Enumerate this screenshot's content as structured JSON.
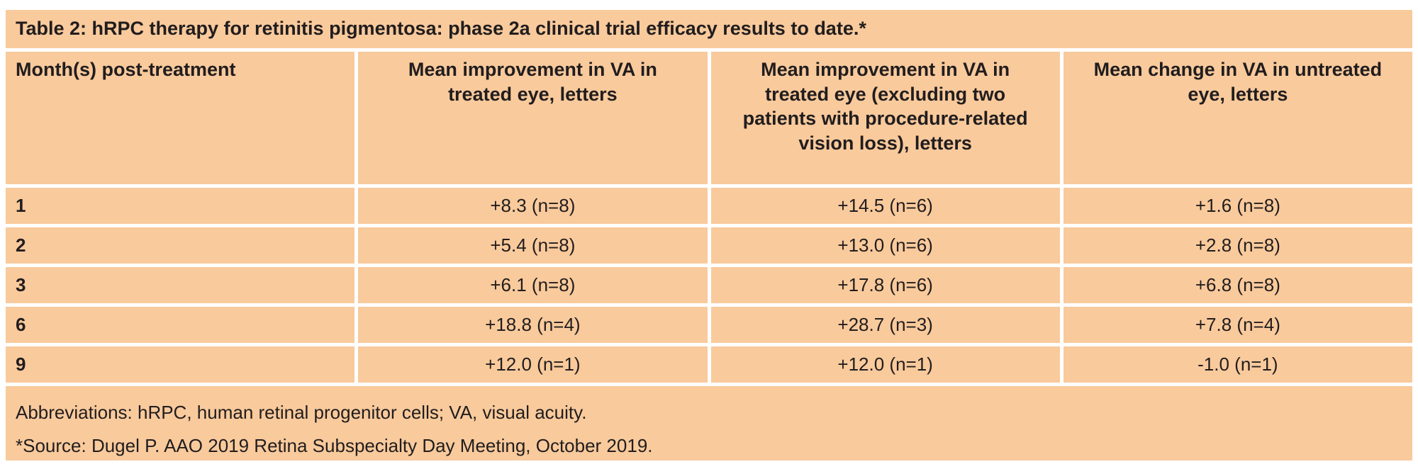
{
  "table": {
    "title": "Table 2: hRPC therapy for retinitis pigmentosa: phase 2a clinical trial efficacy results to date.*",
    "columns": [
      "Month(s) post-treatment",
      "Mean improvement in VA in treated eye, letters",
      "Mean improvement in VA in treated eye (excluding two patients with procedure-related vision loss), letters",
      "Mean change in VA in untreated eye, letters"
    ],
    "rows": [
      {
        "month": "1",
        "treated": "+8.3 (n=8)",
        "treated_excluding": "+14.5 (n=6)",
        "untreated": "+1.6 (n=8)"
      },
      {
        "month": "2",
        "treated": "+5.4 (n=8)",
        "treated_excluding": "+13.0 (n=6)",
        "untreated": "+2.8 (n=8)"
      },
      {
        "month": "3",
        "treated": "+6.1 (n=8)",
        "treated_excluding": "+17.8 (n=6)",
        "untreated": "+6.8 (n=8)"
      },
      {
        "month": "6",
        "treated": "+18.8 (n=4)",
        "treated_excluding": "+28.7 (n=3)",
        "untreated": "+7.8 (n=4)"
      },
      {
        "month": "9",
        "treated": "+12.0 (n=1)",
        "treated_excluding": "+12.0 (n=1)",
        "untreated": "-1.0 (n=1)"
      }
    ],
    "footnotes": {
      "abbreviations": "Abbreviations: hRPC, human retinal progenitor cells; VA, visual acuity.",
      "source": "*Source: Dugel P. AAO 2019 Retina Subspecialty Day Meeting, October 2019."
    },
    "colors": {
      "cell_background": "#F9CA9C",
      "divider": "#FFFFFF",
      "text": "#211D1E"
    }
  }
}
